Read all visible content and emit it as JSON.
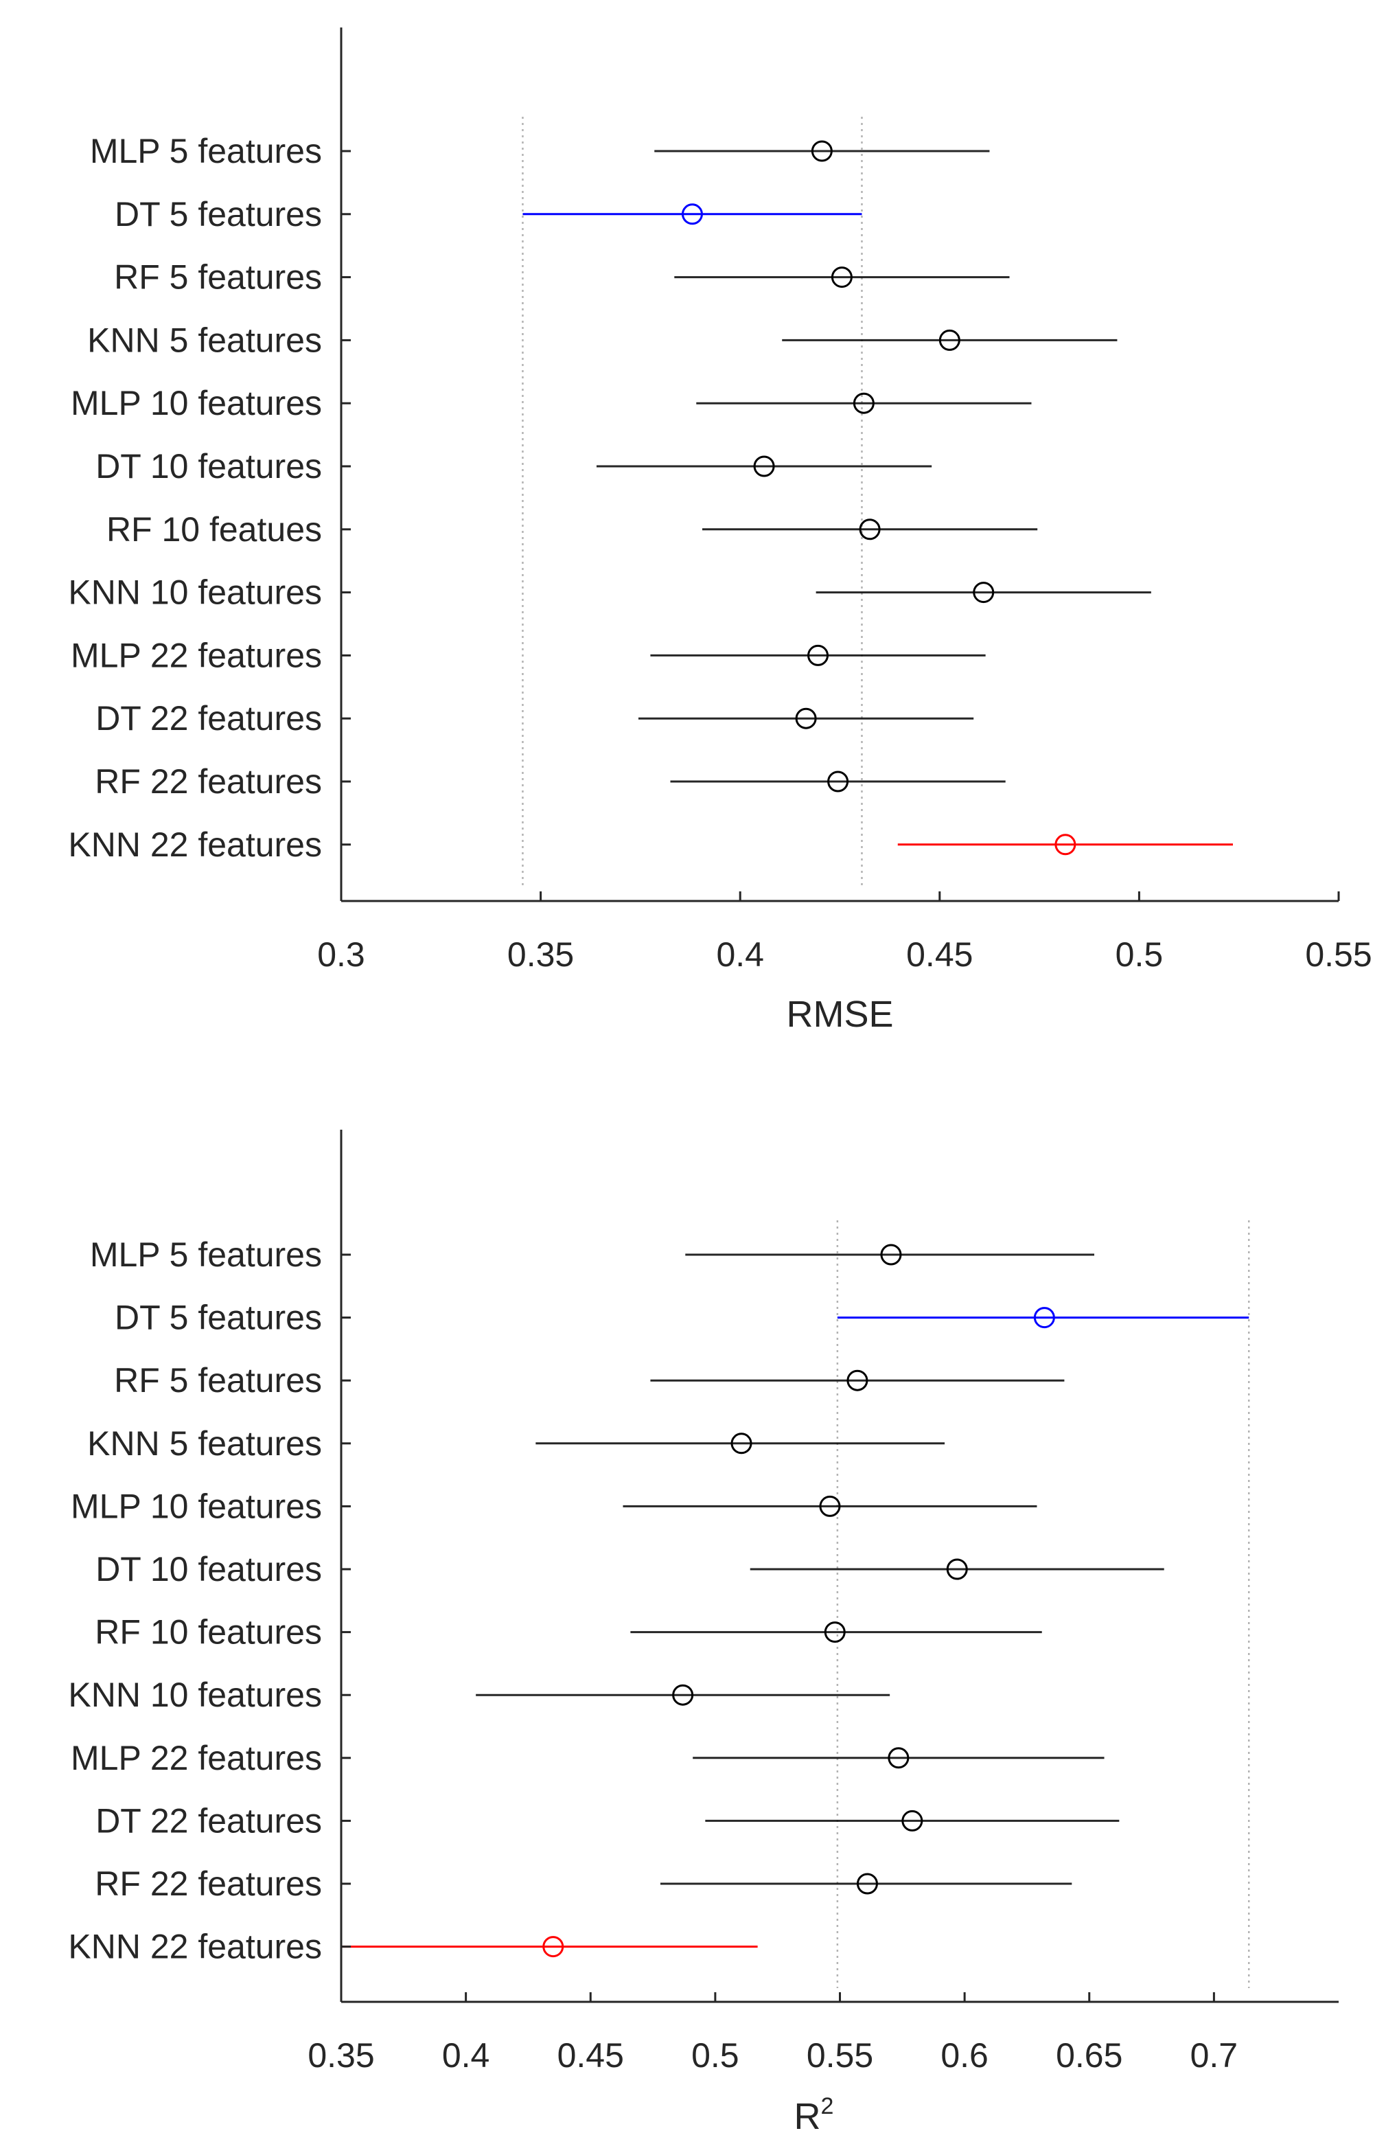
{
  "chart_data": [
    {
      "type": "errorbar",
      "title": "",
      "xlabel": "RMSE",
      "xlim": [
        0.3,
        0.55
      ],
      "xticks": [
        0.3,
        0.35,
        0.4,
        0.45,
        0.5,
        0.55
      ],
      "tick_labels": [
        "0.3",
        "0.35",
        "0.4",
        "0.45",
        "0.5",
        "0.55"
      ],
      "reference_lines": [
        0.3455,
        0.4305
      ],
      "categories": [
        "MLP 5 features",
        "DT 5 features",
        "RF 5 features",
        "KNN 5 features",
        "MLP 10 features",
        "DT 10 features",
        "RF 10 featues",
        "KNN 10 features",
        "MLP 22 features",
        "DT 22 features",
        "RF 22 features",
        "KNN 22 features"
      ],
      "values": [
        0.4205,
        0.388,
        0.4255,
        0.4525,
        0.431,
        0.406,
        0.4325,
        0.461,
        0.4195,
        0.4165,
        0.4245,
        0.4815
      ],
      "lower": [
        0.3785,
        0.3455,
        0.3835,
        0.4105,
        0.389,
        0.364,
        0.3905,
        0.419,
        0.3775,
        0.3745,
        0.3825,
        0.4395
      ],
      "upper": [
        0.4625,
        0.4305,
        0.4675,
        0.4945,
        0.473,
        0.448,
        0.4745,
        0.503,
        0.4615,
        0.4585,
        0.4665,
        0.5235
      ],
      "colors": [
        "#000000",
        "#0000ff",
        "#000000",
        "#000000",
        "#000000",
        "#000000",
        "#000000",
        "#000000",
        "#000000",
        "#000000",
        "#000000",
        "#ff0000"
      ]
    },
    {
      "type": "errorbar",
      "title": "",
      "xlabel": "R",
      "xlabel_superscript": "2",
      "xlim": [
        0.35,
        0.75
      ],
      "xticks": [
        0.35,
        0.4,
        0.45,
        0.5,
        0.55,
        0.6,
        0.65,
        0.7
      ],
      "tick_labels": [
        "0.35",
        "0.4",
        "0.45",
        "0.5",
        "0.55",
        "0.6",
        "0.65",
        "0.7"
      ],
      "reference_lines": [
        0.549,
        0.714
      ],
      "categories": [
        "MLP 5 features",
        "DT 5 features",
        "RF 5 features",
        "KNN 5 features",
        "MLP 10 features",
        "DT 10 features",
        "RF 10 features",
        "KNN 10 features",
        "MLP 22 features",
        "DT 22 features",
        "RF 22 features",
        "KNN 22 features"
      ],
      "values": [
        0.5705,
        0.632,
        0.557,
        0.5105,
        0.546,
        0.597,
        0.548,
        0.487,
        0.5735,
        0.579,
        0.561,
        0.435
      ],
      "lower": [
        0.488,
        0.549,
        0.474,
        0.428,
        0.463,
        0.514,
        0.466,
        0.404,
        0.491,
        0.496,
        0.478,
        0.35
      ],
      "upper": [
        0.652,
        0.714,
        0.64,
        0.592,
        0.629,
        0.68,
        0.631,
        0.57,
        0.656,
        0.662,
        0.643,
        0.517
      ],
      "colors": [
        "#000000",
        "#0000ff",
        "#000000",
        "#000000",
        "#000000",
        "#000000",
        "#000000",
        "#000000",
        "#000000",
        "#000000",
        "#000000",
        "#ff0000"
      ]
    }
  ]
}
